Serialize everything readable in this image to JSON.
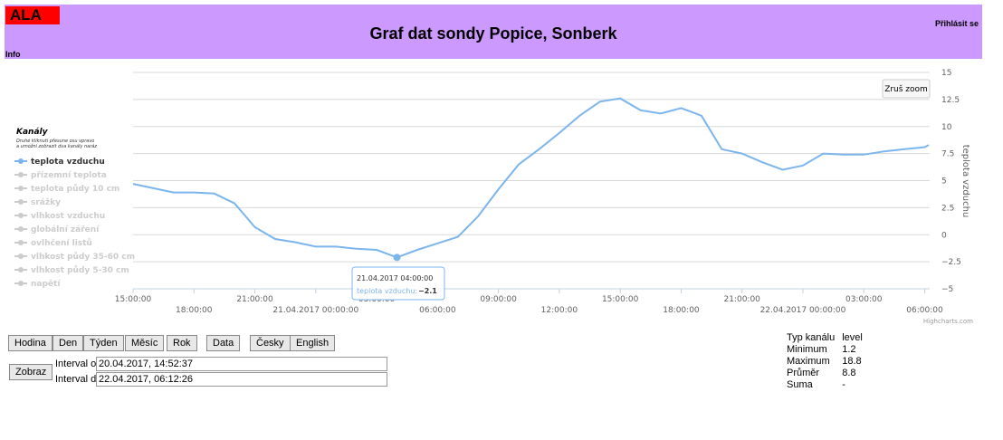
{
  "header": {
    "logo": "ALA",
    "title": "Graf dat sondy Popice, Sonberk",
    "login": "Přihlásit se",
    "info": "Info"
  },
  "chart_data": {
    "type": "line",
    "x": [
      "2017-04-20T15:00:00",
      "2017-04-20T16:00:00",
      "2017-04-20T17:00:00",
      "2017-04-20T18:00:00",
      "2017-04-20T19:00:00",
      "2017-04-20T20:00:00",
      "2017-04-20T21:00:00",
      "2017-04-20T22:00:00",
      "2017-04-20T23:00:00",
      "2017-04-21T00:00:00",
      "2017-04-21T01:00:00",
      "2017-04-21T02:00:00",
      "2017-04-21T03:00:00",
      "2017-04-21T04:00:00",
      "2017-04-21T05:00:00",
      "2017-04-21T06:00:00",
      "2017-04-21T07:00:00",
      "2017-04-21T08:00:00",
      "2017-04-21T09:00:00",
      "2017-04-21T10:00:00",
      "2017-04-21T11:00:00",
      "2017-04-21T12:00:00",
      "2017-04-21T13:00:00",
      "2017-04-21T14:00:00",
      "2017-04-21T15:00:00",
      "2017-04-21T16:00:00",
      "2017-04-21T17:00:00",
      "2017-04-21T18:00:00",
      "2017-04-21T19:00:00",
      "2017-04-21T20:00:00",
      "2017-04-21T21:00:00",
      "2017-04-21T22:00:00",
      "2017-04-21T23:00:00",
      "2017-04-22T00:00:00",
      "2017-04-22T01:00:00",
      "2017-04-22T02:00:00",
      "2017-04-22T03:00:00",
      "2017-04-22T04:00:00",
      "2017-04-22T05:00:00",
      "2017-04-22T06:00:00",
      "2017-04-22T06:12:00"
    ],
    "series": [
      {
        "name": "teplota vzduchu",
        "color": "#7cb5ec",
        "values": [
          4.7,
          4.3,
          3.9,
          3.9,
          3.8,
          2.9,
          0.7,
          -0.4,
          -0.7,
          -1.1,
          -1.1,
          -1.3,
          -1.4,
          -2.1,
          -1.4,
          -0.8,
          -0.2,
          1.7,
          4.2,
          6.5,
          7.9,
          9.4,
          11.0,
          12.3,
          12.6,
          11.5,
          11.2,
          11.7,
          11.0,
          7.9,
          7.5,
          6.7,
          6.0,
          6.4,
          7.5,
          7.4,
          7.4,
          7.7,
          7.9,
          8.1,
          8.3
        ]
      }
    ],
    "xlim": [
      "2017-04-20T15:00:00",
      "2017-04-22T06:12:00"
    ],
    "xticks": [
      {
        "value": "2017-04-20T15:00:00",
        "label": "15:00:00"
      },
      {
        "value": "2017-04-20T18:00:00",
        "label": "18:00:00"
      },
      {
        "value": "2017-04-20T21:00:00",
        "label": "21:00:00"
      },
      {
        "value": "2017-04-21T00:00:00",
        "label": "21.04.2017 00:00:00"
      },
      {
        "value": "2017-04-21T03:00:00",
        "label": "03:00:00"
      },
      {
        "value": "2017-04-21T06:00:00",
        "label": "06:00:00"
      },
      {
        "value": "2017-04-21T09:00:00",
        "label": "09:00:00"
      },
      {
        "value": "2017-04-21T12:00:00",
        "label": "12:00:00"
      },
      {
        "value": "2017-04-21T15:00:00",
        "label": "15:00:00"
      },
      {
        "value": "2017-04-21T18:00:00",
        "label": "18:00:00"
      },
      {
        "value": "2017-04-21T21:00:00",
        "label": "21:00:00"
      },
      {
        "value": "2017-04-22T00:00:00",
        "label": "22.04.2017 00:00:00"
      },
      {
        "value": "2017-04-22T03:00:00",
        "label": "03:00:00"
      },
      {
        "value": "2017-04-22T06:00:00",
        "label": "06:00:00"
      }
    ],
    "ylim": [
      -5,
      15
    ],
    "yticks": [
      15,
      {
        "value": 12.5,
        "label": "12.5"
      },
      10,
      {
        "value": 7.5,
        "label": "7.5"
      },
      5,
      {
        "value": 2.5,
        "label": "2.5"
      },
      0,
      {
        "value": -2.5,
        "label": "−2.5"
      },
      {
        "value": -5,
        "label": "−5"
      }
    ],
    "y_label": "teplota vzduchu",
    "grid": true,
    "legend_title": "Kanály",
    "legend_note": [
      "Druhé kliknutí přesune osu vpravo",
      "a umožní zobrazit dva kanály naráz"
    ],
    "hidden_channels": [
      "přízemní teplota",
      "teplota půdy 10 cm",
      "srážky",
      "vlhkost vzduchu",
      "globální záření",
      "ovlhčení listů",
      "vlhkost půdy 35-60 cm",
      "vlhkost půdy 5-30 cm",
      "napětí"
    ],
    "tooltip": {
      "date": "21.04.2017 04:00:00",
      "label": "teplota vzduchu:",
      "value": "−2.1"
    },
    "reset_zoom": "Zruš zoom",
    "credits": "Highcharts.com"
  },
  "controls": {
    "buttons": [
      "Hodina",
      "Den",
      "Týden",
      "Měsíc",
      "Rok",
      "Data",
      "Česky",
      "English"
    ],
    "show": "Zobraz",
    "from_label": "Interval od",
    "from_value": "20.04.2017, 14:52:37",
    "to_label": "Interval do",
    "to_value": "22.04.2017, 06:12:26"
  },
  "stats": {
    "rows": [
      [
        "Typ kanálu",
        "level"
      ],
      [
        "Minimum",
        "1.2"
      ],
      [
        "Maximum",
        "18.8"
      ],
      [
        "Průměr",
        "8.8"
      ],
      [
        "Suma",
        "-"
      ]
    ]
  }
}
